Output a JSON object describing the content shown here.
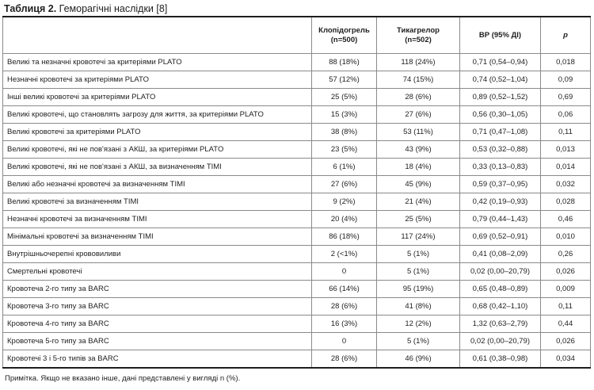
{
  "caption": {
    "bold": "Таблиця 2.",
    "text": " Геморагічні наслідки [8]"
  },
  "header": {
    "col1_line1": "Клопідогрель",
    "col1_line2": "(n=500)",
    "col2_line1": "Тикагрелор",
    "col2_line2": "(n=502)",
    "col3": "ВР (95% ДІ)",
    "col4": "p"
  },
  "rows": [
    {
      "label": "Великі та незначні кровотечі за критеріями PLATO",
      "clop": "88 (18%)",
      "tic": "118 (24%)",
      "hr": "0,71 (0,54–0,94)",
      "p": "0,018"
    },
    {
      "label": "Незначні кровотечі за критеріями PLATO",
      "clop": "57 (12%)",
      "tic": "74 (15%)",
      "hr": "0,74 (0,52–1,04)",
      "p": "0,09"
    },
    {
      "label": "Інші великі кровотечі за критеріями PLATO",
      "clop": "25 (5%)",
      "tic": "28 (6%)",
      "hr": "0,89 (0,52–1,52)",
      "p": "0,69"
    },
    {
      "label": "Великі кровотечі, що становлять загрозу для  життя,  за критеріями PLATO",
      "clop": "15 (3%)",
      "tic": "27 (6%)",
      "hr": "0,56 (0,30–1,05)",
      "p": "0,06"
    },
    {
      "label": "Великі кровотечі за критеріями PLATO",
      "clop": "38 (8%)",
      "tic": "53 (11%)",
      "hr": "0,71 (0,47–1,08)",
      "p": "0,11"
    },
    {
      "label": "Великі кровотечі, які не пов'язані з АКШ, за критеріями PLATO",
      "clop": "23 (5%)",
      "tic": "43 (9%)",
      "hr": "0,53 (0,32–0,88)",
      "p": "0,013"
    },
    {
      "label": "Великі кровотечі, які не пов'язані з АКШ, за визначенням TIMI",
      "clop": "6 (1%)",
      "tic": "18 (4%)",
      "hr": "0,33 (0,13–0,83)",
      "p": "0,014"
    },
    {
      "label": "Великі або незначні кровотечі за визначенням TIMI",
      "clop": "27 (6%)",
      "tic": "45 (9%)",
      "hr": "0,59 (0,37–0,95)",
      "p": "0,032"
    },
    {
      "label": "Великі кровотечі за визначенням TIMI",
      "clop": "9 (2%)",
      "tic": "21 (4%)",
      "hr": "0,42 (0,19–0,93)",
      "p": "0,028"
    },
    {
      "label": "Незначні кровотечі за визначенням TIMI",
      "clop": "20 (4%)",
      "tic": "25 (5%)",
      "hr": "0,79 (0,44–1,43)",
      "p": "0,46"
    },
    {
      "label": "Мінімальні кровотечі за визначенням TIMI",
      "clop": "86 (18%)",
      "tic": "117 (24%)",
      "hr": "0,69 (0,52–0,91)",
      "p": "0,010"
    },
    {
      "label": "Внутрішньочерепні крововиливи",
      "clop": "2 (<1%)",
      "tic": "5 (1%)",
      "hr": "0,41 (0,08–2,09)",
      "p": "0,26"
    },
    {
      "label": "Смертельні кровотечі",
      "clop": "0",
      "tic": "5 (1%)",
      "hr": "0,02 (0,00–20,79)",
      "p": "0,026"
    },
    {
      "label": "Кровотеча 2-го типу за BARC",
      "clop": "66 (14%)",
      "tic": "95 (19%)",
      "hr": "0,65 (0,48–0,89)",
      "p": "0,009"
    },
    {
      "label": "Кровотеча 3-го типу за BARC",
      "clop": "28 (6%)",
      "tic": "41 (8%)",
      "hr": "0,68 (0,42–1,10)",
      "p": "0,11"
    },
    {
      "label": "Кровотеча 4-го типу за BARC",
      "clop": "16 (3%)",
      "tic": "12 (2%)",
      "hr": "1,32 (0,63–2,79)",
      "p": "0,44"
    },
    {
      "label": "Кровотеча 5-го типу за BARC",
      "clop": "0",
      "tic": "5 (1%)",
      "hr": "0,02 (0,00–20,79)",
      "p": "0,026"
    },
    {
      "label": "Кровотечі 3 і 5-го типів за BARC",
      "clop": "28 (6%)",
      "tic": "46 (9%)",
      "hr": "0,61 (0,38–0,98)",
      "p": "0,034"
    }
  ],
  "note": "Примітка. Якщо не вказано інше, дані представлені у вигляді n (%)."
}
